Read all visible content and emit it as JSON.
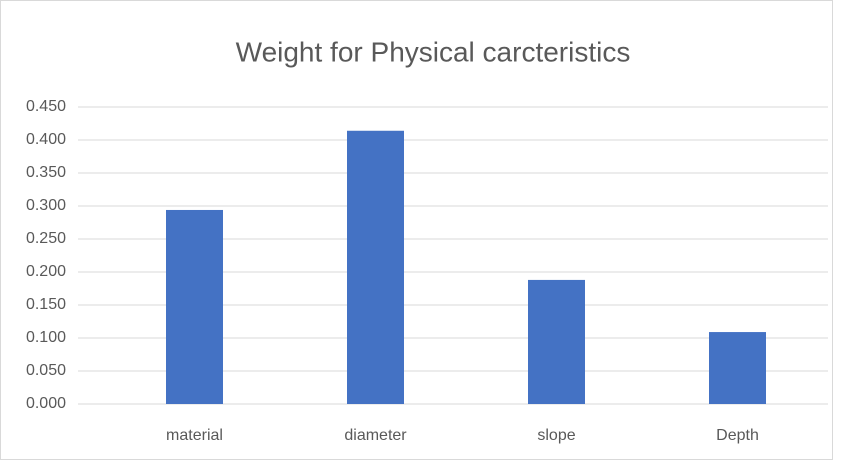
{
  "chart_data": {
    "type": "bar",
    "title": "Weight for Physical carcteristics",
    "categories": [
      "material",
      "diameter",
      "slope",
      "Depth"
    ],
    "values": [
      0.294,
      0.414,
      0.188,
      0.109
    ],
    "color": "#4472c4",
    "ylim": [
      0,
      0.45
    ],
    "yticks": [
      {
        "value": 0,
        "label": "0.000"
      },
      {
        "value": 0.05,
        "label": "0.050"
      },
      {
        "value": 0.1,
        "label": "0.100"
      },
      {
        "value": 0.15,
        "label": "0.150"
      },
      {
        "value": 0.2,
        "label": "0.200"
      },
      {
        "value": 0.25,
        "label": "0.250"
      },
      {
        "value": 0.3,
        "label": "0.300"
      },
      {
        "value": 0.35,
        "label": "0.350"
      },
      {
        "value": 0.4,
        "label": "0.400"
      },
      {
        "value": 0.45,
        "label": "0.450"
      }
    ],
    "grid": true
  }
}
